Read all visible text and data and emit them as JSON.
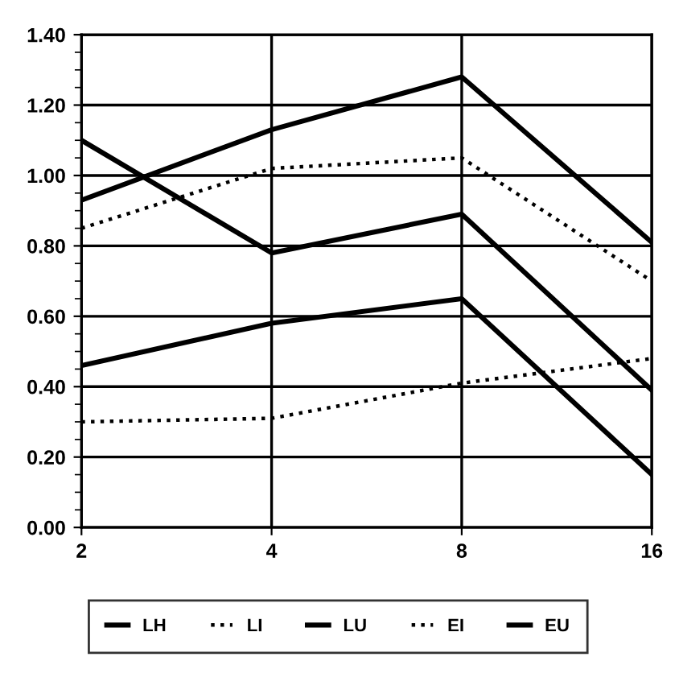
{
  "chart_data": {
    "type": "line",
    "categories": [
      "2",
      "4",
      "8",
      "16"
    ],
    "series": [
      {
        "name": "LH",
        "color": "#000000",
        "line_style": "solid",
        "values": [
          0.93,
          1.13,
          1.28,
          0.81
        ]
      },
      {
        "name": "LI",
        "color": "#000000",
        "line_style": "dotted",
        "values": [
          0.85,
          1.02,
          1.05,
          0.7
        ]
      },
      {
        "name": "LU",
        "color": "#000000",
        "line_style": "solid",
        "values": [
          1.1,
          0.78,
          0.89,
          0.39
        ]
      },
      {
        "name": "EI",
        "color": "#000000",
        "line_style": "dotted",
        "values": [
          0.3,
          0.31,
          0.41,
          0.48
        ]
      },
      {
        "name": "EU",
        "color": "#000000",
        "line_style": "solid",
        "values": [
          0.46,
          0.58,
          0.65,
          0.15
        ]
      }
    ],
    "ylim": [
      0,
      1.4
    ],
    "yticks": [
      {
        "value": 0,
        "label": "0.00"
      },
      {
        "value": 0.2,
        "label": "0.20"
      },
      {
        "value": 0.4,
        "label": "0.40"
      },
      {
        "value": 0.6,
        "label": "0.60"
      },
      {
        "value": 0.8,
        "label": "0.80"
      },
      {
        "value": 1.0,
        "label": "1.00"
      },
      {
        "value": 1.2,
        "label": "1.20"
      },
      {
        "value": 1.4,
        "label": "1.40"
      }
    ],
    "grid": true,
    "legend": "bottom",
    "marker": "none"
  }
}
